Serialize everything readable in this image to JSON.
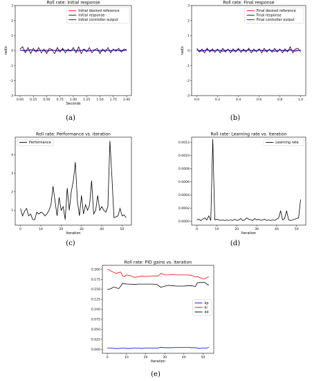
{
  "labels": [
    "(a)",
    "(b)",
    "(c)",
    "(d)",
    "(e)"
  ],
  "chart_data": [
    {
      "id": "a",
      "type": "line",
      "title": "Roll rate: Initial response",
      "xlabel": "Seconds",
      "ylabel": "rad/s",
      "xlim": [
        -0.09,
        2.09
      ],
      "ylim": [
        -3,
        3
      ],
      "xticks": [
        "0.00",
        "0.25",
        "0.50",
        "0.75",
        "1.00",
        "1.25",
        "1.50",
        "1.75",
        "2.00"
      ],
      "yticks": [
        "-3",
        "-2",
        "-1",
        "0",
        "1",
        "2",
        "3"
      ],
      "legend": "top-right",
      "series": [
        {
          "name": "Initial desired reference",
          "color": "#ff0000",
          "x": [
            0.0,
            0.1,
            0.2,
            0.3,
            0.4,
            0.5,
            0.6,
            0.7,
            0.8,
            0.9,
            1.0,
            1.1,
            1.2,
            1.3,
            1.4,
            1.5,
            1.6,
            1.7,
            1.8,
            1.9,
            2.0
          ],
          "y": [
            0.05,
            -0.05,
            0.08,
            -0.06,
            0.04,
            -0.07,
            0.06,
            -0.05,
            0.07,
            -0.04,
            0.05,
            -0.06,
            0.08,
            -0.05,
            0.06,
            -0.07,
            0.05,
            -0.04,
            0.06,
            -0.05,
            0.04
          ]
        },
        {
          "name": "Initial response",
          "color": "#000000",
          "x": [
            0.0,
            0.05,
            0.1,
            0.15,
            0.2,
            0.25,
            0.3,
            0.35,
            0.4,
            0.45,
            0.5,
            0.55,
            0.6,
            0.65,
            0.7,
            0.75,
            0.8,
            0.85,
            0.9,
            0.95,
            1.0,
            1.05,
            1.1,
            1.15,
            1.2,
            1.25,
            1.3,
            1.35,
            1.4,
            1.45,
            1.5,
            1.55,
            1.6,
            1.65,
            1.7,
            1.75,
            1.8,
            1.85,
            1.9,
            1.95,
            2.0
          ],
          "y": [
            0.1,
            0.25,
            -0.15,
            0.2,
            -0.2,
            0.15,
            -0.1,
            0.2,
            -0.15,
            0.1,
            -0.2,
            0.15,
            0.05,
            -0.2,
            0.2,
            -0.1,
            0.15,
            -0.15,
            0.1,
            -0.05,
            0.2,
            -0.15,
            0.25,
            -0.2,
            0.1,
            -0.1,
            0.2,
            -0.15,
            0.05,
            0.15,
            -0.2,
            0.1,
            -0.1,
            0.2,
            -0.15,
            0.1,
            -0.05,
            0.15,
            -0.1,
            0.1,
            0.05
          ]
        },
        {
          "name": "Initial controller output",
          "color": "#0000ff",
          "x": [
            0.0,
            0.1,
            0.2,
            0.3,
            0.4,
            0.5,
            0.6,
            0.7,
            0.8,
            0.9,
            1.0,
            1.1,
            1.2,
            1.3,
            1.4,
            1.5,
            1.6,
            1.7,
            1.8,
            1.9,
            2.0
          ],
          "y": [
            0.02,
            0.03,
            0.01,
            0.02,
            0.03,
            0.02,
            0.01,
            0.03,
            0.02,
            0.02,
            0.01,
            0.03,
            0.02,
            0.01,
            0.02,
            0.03,
            0.02,
            0.01,
            0.02,
            0.03,
            0.02
          ]
        }
      ]
    },
    {
      "id": "b",
      "type": "line",
      "title": "Roll rate: Final response",
      "xlabel": "",
      "ylabel": "rad/s",
      "xlim": [
        -0.05,
        1.05
      ],
      "ylim": [
        -3,
        3
      ],
      "xticks": [
        "0.0",
        "0.2",
        "0.4",
        "0.6",
        "0.8",
        "1.0"
      ],
      "yticks": [
        "-3",
        "-2",
        "-1",
        "0",
        "1",
        "2",
        "3"
      ],
      "legend": "top-right",
      "series": [
        {
          "name": "Final desired reference",
          "color": "#ff0000",
          "x": [
            0.0,
            0.05,
            0.1,
            0.15,
            0.2,
            0.25,
            0.3,
            0.35,
            0.4,
            0.45,
            0.5,
            0.55,
            0.6,
            0.65,
            0.7,
            0.75,
            0.8,
            0.85,
            0.9,
            0.95,
            1.0
          ],
          "y": [
            0.05,
            -0.06,
            0.07,
            -0.05,
            0.06,
            -0.07,
            0.05,
            -0.06,
            0.07,
            -0.04,
            0.06,
            -0.05,
            0.07,
            -0.06,
            0.05,
            -0.07,
            0.06,
            -0.05,
            0.07,
            -0.06,
            0.05
          ]
        },
        {
          "name": "Final response",
          "color": "#000000",
          "x": [
            0.0,
            0.025,
            0.05,
            0.075,
            0.1,
            0.125,
            0.15,
            0.175,
            0.2,
            0.225,
            0.25,
            0.275,
            0.3,
            0.325,
            0.35,
            0.375,
            0.4,
            0.425,
            0.45,
            0.475,
            0.5,
            0.525,
            0.55,
            0.575,
            0.6,
            0.625,
            0.65,
            0.675,
            0.7,
            0.725,
            0.75,
            0.775,
            0.8,
            0.825,
            0.85,
            0.875,
            0.9,
            0.925,
            0.95,
            0.975,
            1.0
          ],
          "y": [
            0.15,
            -0.1,
            0.1,
            -0.15,
            0.15,
            -0.1,
            0.12,
            -0.12,
            0.1,
            -0.15,
            0.15,
            -0.1,
            0.1,
            -0.15,
            0.12,
            -0.1,
            0.15,
            -0.12,
            0.1,
            -0.1,
            0.15,
            -0.15,
            0.1,
            -0.1,
            0.12,
            -0.15,
            0.15,
            -0.1,
            0.1,
            -0.12,
            0.15,
            -0.1,
            0.1,
            -0.15,
            0.12,
            -0.1,
            0.25,
            -0.15,
            0.1,
            0.15,
            -0.1
          ]
        },
        {
          "name": "Final controller output",
          "color": "#0000ff",
          "x": [
            0.0,
            0.05,
            0.1,
            0.15,
            0.2,
            0.25,
            0.3,
            0.35,
            0.4,
            0.45,
            0.5,
            0.55,
            0.6,
            0.65,
            0.7,
            0.75,
            0.8,
            0.85,
            0.9,
            0.95,
            1.0
          ],
          "y": [
            0.02,
            0.01,
            0.03,
            0.02,
            0.01,
            0.02,
            0.03,
            0.02,
            0.01,
            0.02,
            0.03,
            0.01,
            0.02,
            0.03,
            0.02,
            0.01,
            0.02,
            0.03,
            0.02,
            0.01,
            0.02
          ]
        }
      ]
    },
    {
      "id": "c",
      "type": "line",
      "title": "Roll rate: Performance vs. iteration",
      "xlabel": "Iteration",
      "ylabel": "",
      "xlim": [
        -2.6,
        54.6
      ],
      "ylim": [
        0.2,
        4.95
      ],
      "xticks": [
        "0",
        "10",
        "20",
        "30",
        "40",
        "50"
      ],
      "yticks": [
        "1",
        "2",
        "3",
        "4"
      ],
      "legend": "top-left",
      "series": [
        {
          "name": "Performance",
          "color": "#000000",
          "x": [
            0,
            1,
            2,
            3,
            4,
            5,
            6,
            7,
            8,
            9,
            10,
            11,
            12,
            13,
            14,
            15,
            16,
            17,
            18,
            19,
            20,
            21,
            22,
            23,
            24,
            25,
            26,
            27,
            28,
            29,
            30,
            31,
            32,
            33,
            34,
            35,
            36,
            37,
            38,
            39,
            40,
            41,
            42,
            43,
            44,
            45,
            46,
            47,
            48,
            49,
            50,
            51,
            52
          ],
          "y": [
            1.1,
            0.7,
            0.95,
            1.1,
            0.7,
            0.8,
            0.5,
            0.5,
            0.9,
            0.8,
            0.9,
            0.85,
            0.7,
            0.8,
            1.0,
            1.3,
            2.3,
            1.5,
            0.7,
            1.7,
            1.0,
            1.2,
            0.5,
            2.2,
            1.0,
            2.0,
            2.6,
            3.6,
            1.5,
            0.7,
            1.8,
            0.8,
            1.3,
            1.0,
            1.3,
            2.6,
            0.8,
            1.0,
            1.8,
            1.0,
            1.2,
            1.0,
            0.9,
            1.2,
            4.75,
            2.8,
            0.6,
            0.65,
            0.7,
            1.1,
            0.7,
            0.75,
            0.6
          ]
        }
      ]
    },
    {
      "id": "d",
      "type": "line",
      "title": "Roll rate: Learning rate vs. iteration",
      "xlabel": "Iteration",
      "ylabel": "",
      "xlim": [
        -2.6,
        54.6
      ],
      "ylim": [
        -6e-05,
        0.00128
      ],
      "xticks": [
        "0",
        "10",
        "20",
        "30",
        "40",
        "50"
      ],
      "yticks": [
        "0.0000",
        "0.0002",
        "0.0004",
        "0.0006",
        "0.0008",
        "0.0010",
        "0.0012"
      ],
      "legend": "top-right",
      "series": [
        {
          "name": "Learning rate",
          "color": "#000000",
          "x": [
            0,
            1,
            2,
            3,
            4,
            5,
            6,
            7,
            8,
            9,
            10,
            11,
            12,
            13,
            14,
            15,
            16,
            17,
            18,
            19,
            20,
            21,
            22,
            23,
            24,
            25,
            26,
            27,
            28,
            29,
            30,
            31,
            32,
            33,
            34,
            35,
            36,
            37,
            38,
            39,
            40,
            41,
            42,
            43,
            44,
            45,
            46,
            47,
            48,
            49,
            50,
            51,
            52
          ],
          "y": [
            2e-05,
            3e-05,
            1e-05,
            3e-05,
            5e-05,
            2e-05,
            8e-05,
            1e-05,
            0.00125,
            2e-05,
            3e-05,
            2e-05,
            1e-05,
            2e-05,
            1e-05,
            2e-05,
            1e-05,
            2e-05,
            1e-05,
            3e-05,
            1e-05,
            2e-05,
            4e-05,
            1e-05,
            2e-05,
            5e-05,
            3e-05,
            2e-05,
            1e-05,
            4e-05,
            2e-05,
            3e-05,
            1e-05,
            2e-05,
            3e-05,
            1e-05,
            2e-05,
            1e-05,
            2e-05,
            1e-05,
            3e-05,
            5e-05,
            0.00016,
            2e-05,
            4e-05,
            0.00016,
            2e-05,
            1e-05,
            2e-05,
            3e-05,
            4e-05,
            5e-05,
            0.00033
          ]
        }
      ]
    },
    {
      "id": "e",
      "type": "line",
      "title": "Roll rate: PID gains vs. iteration",
      "xlabel": "Iteration",
      "ylabel": "",
      "xlim": [
        -2.6,
        55.6
      ],
      "ylim": [
        -0.01,
        0.21
      ],
      "xticks": [
        "0",
        "10",
        "20",
        "30",
        "40",
        "50"
      ],
      "yticks": [
        "0.000",
        "0.025",
        "0.050",
        "0.075",
        "0.100",
        "0.125",
        "0.150",
        "0.175",
        "0.200"
      ],
      "legend": "right",
      "series": [
        {
          "name": "kp",
          "color": "#0000ff",
          "x": [
            0,
            2,
            4,
            6,
            8,
            10,
            12,
            14,
            16,
            18,
            20,
            22,
            24,
            26,
            28,
            30,
            32,
            34,
            36,
            38,
            40,
            42,
            44,
            46,
            48,
            50,
            52,
            53
          ],
          "y": [
            0.003,
            0.003,
            0.002,
            0.002,
            0.003,
            0.002,
            0.002,
            0.003,
            0.003,
            0.002,
            0.003,
            0.003,
            0.003,
            0.003,
            0.005,
            0.004,
            0.004,
            0.004,
            0.005,
            0.005,
            0.005,
            0.005,
            0.004,
            0.004,
            0.002,
            0.003,
            0.003,
            0.005
          ]
        },
        {
          "name": "ki",
          "color": "#ff0000",
          "x": [
            0,
            1,
            2,
            3,
            4,
            5,
            6,
            7,
            8,
            9,
            10,
            12,
            14,
            16,
            18,
            20,
            22,
            24,
            26,
            27,
            28,
            30,
            32,
            34,
            36,
            38,
            40,
            42,
            44,
            45,
            46,
            47,
            48,
            50,
            51,
            52,
            53
          ],
          "y": [
            0.199,
            0.199,
            0.195,
            0.193,
            0.191,
            0.19,
            0.192,
            0.193,
            0.183,
            0.182,
            0.186,
            0.184,
            0.18,
            0.181,
            0.183,
            0.182,
            0.183,
            0.183,
            0.183,
            0.185,
            0.19,
            0.186,
            0.186,
            0.187,
            0.186,
            0.186,
            0.186,
            0.186,
            0.185,
            0.183,
            0.181,
            0.182,
            0.18,
            0.176,
            0.176,
            0.18,
            0.181
          ]
        },
        {
          "name": "kd",
          "color": "#000000",
          "x": [
            0,
            1,
            2,
            3,
            4,
            5,
            6,
            7,
            8,
            9,
            10,
            12,
            14,
            16,
            18,
            20,
            22,
            24,
            26,
            27,
            28,
            30,
            32,
            34,
            36,
            38,
            40,
            42,
            44,
            45,
            46,
            47,
            48,
            50,
            51,
            52,
            53
          ],
          "y": [
            0.15,
            0.15,
            0.152,
            0.155,
            0.155,
            0.153,
            0.152,
            0.158,
            0.165,
            0.164,
            0.163,
            0.163,
            0.162,
            0.163,
            0.163,
            0.163,
            0.163,
            0.163,
            0.162,
            0.158,
            0.155,
            0.158,
            0.16,
            0.159,
            0.158,
            0.158,
            0.158,
            0.159,
            0.159,
            0.158,
            0.157,
            0.166,
            0.167,
            0.167,
            0.167,
            0.163,
            0.16
          ]
        }
      ]
    }
  ]
}
